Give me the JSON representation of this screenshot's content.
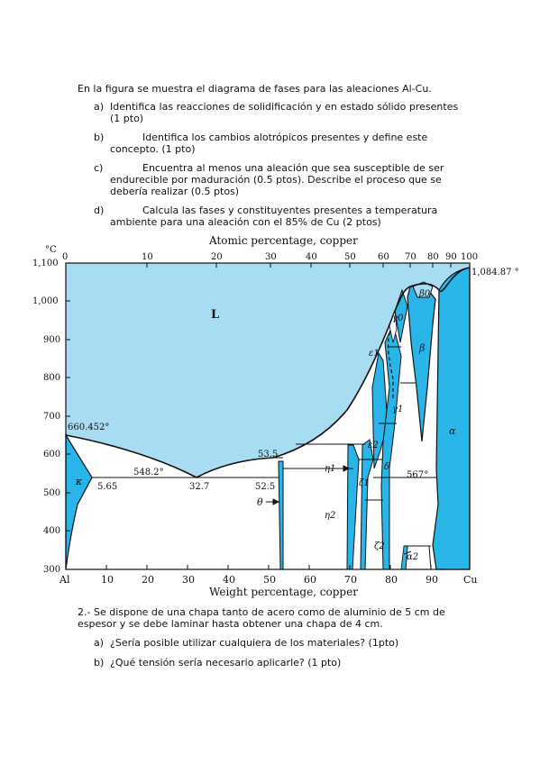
{
  "question1": {
    "intro": "En la figura se muestra el diagrama de fases para las aleaciones Al-Cu.",
    "items": [
      {
        "marker": "a)",
        "line1": "Identifica las reacciones de solidificación y en estado sólido presentes",
        "line2": "(1 pto)"
      },
      {
        "marker": "b)",
        "line1": "Identifica los cambios alotrópicos presentes y define este",
        "line2": "concepto. (1 pto)"
      },
      {
        "marker": "c)",
        "line1": "Encuentra al menos una aleación que sea susceptible de ser",
        "line2": "endurecible por maduración (0.5 ptos). Describe el proceso que se",
        "line3": "debería realizar (0.5 ptos)"
      },
      {
        "marker": "d)",
        "line1": "Calcula las fases y constituyentes presentes a temperatura",
        "line2": "ambiente para una aleación con el 85% de Cu (2 ptos)"
      }
    ]
  },
  "diagram": {
    "top_axis_title": "Atomic percentage, copper",
    "bottom_axis_title": "Weight percentage, copper",
    "temp_unit": "°C",
    "top_ticks": [
      "0",
      "10",
      "20",
      "30",
      "40",
      "50",
      "60",
      "70",
      "80",
      "90",
      "100"
    ],
    "bottom_ticks": [
      "Al",
      "10",
      "20",
      "30",
      "40",
      "50",
      "60",
      "70",
      "80",
      "90",
      "Cu"
    ],
    "y_ticks": [
      "1,100",
      "1,000",
      "900",
      "800",
      "700",
      "600",
      "500",
      "400",
      "300"
    ],
    "labels": {
      "L": "L",
      "al_melt": "660.452°",
      "cu_melt": "1,084.87 °",
      "eut_temp": "548.2°",
      "eut_comp": "32.7",
      "kappa_lim": "5.65",
      "v535": "53.5",
      "v525": "52.5",
      "t567": "567°",
      "kappa": "κ",
      "theta": "θ",
      "eta1": "η1",
      "eta2": "η2",
      "eps1": "ε1",
      "eps2": "ε2",
      "zeta1": "ζ1",
      "zeta2": "ζ2",
      "gamma0": "γ0",
      "gamma1": "γ1",
      "beta": "β",
      "beta0": "β0",
      "alpha": "α",
      "alpha2": "α2",
      "delta": "δ"
    },
    "colors": {
      "liquid": "#a8dcf3",
      "solid": "#29b5e8",
      "line": "#111111"
    }
  },
  "question2": {
    "line1": "2.- Se dispone de una chapa tanto de acero como de aluminio de 5 cm de",
    "line2": "espesor y se debe laminar hasta obtener una chapa de 4 cm.",
    "items": [
      {
        "marker": "a)",
        "text": "¿Sería posible utilizar cualquiera de los materiales? (1pto)"
      },
      {
        "marker": "b)",
        "text": "¿Qué tensión sería necesario aplicarle? (1 pto)"
      }
    ]
  }
}
